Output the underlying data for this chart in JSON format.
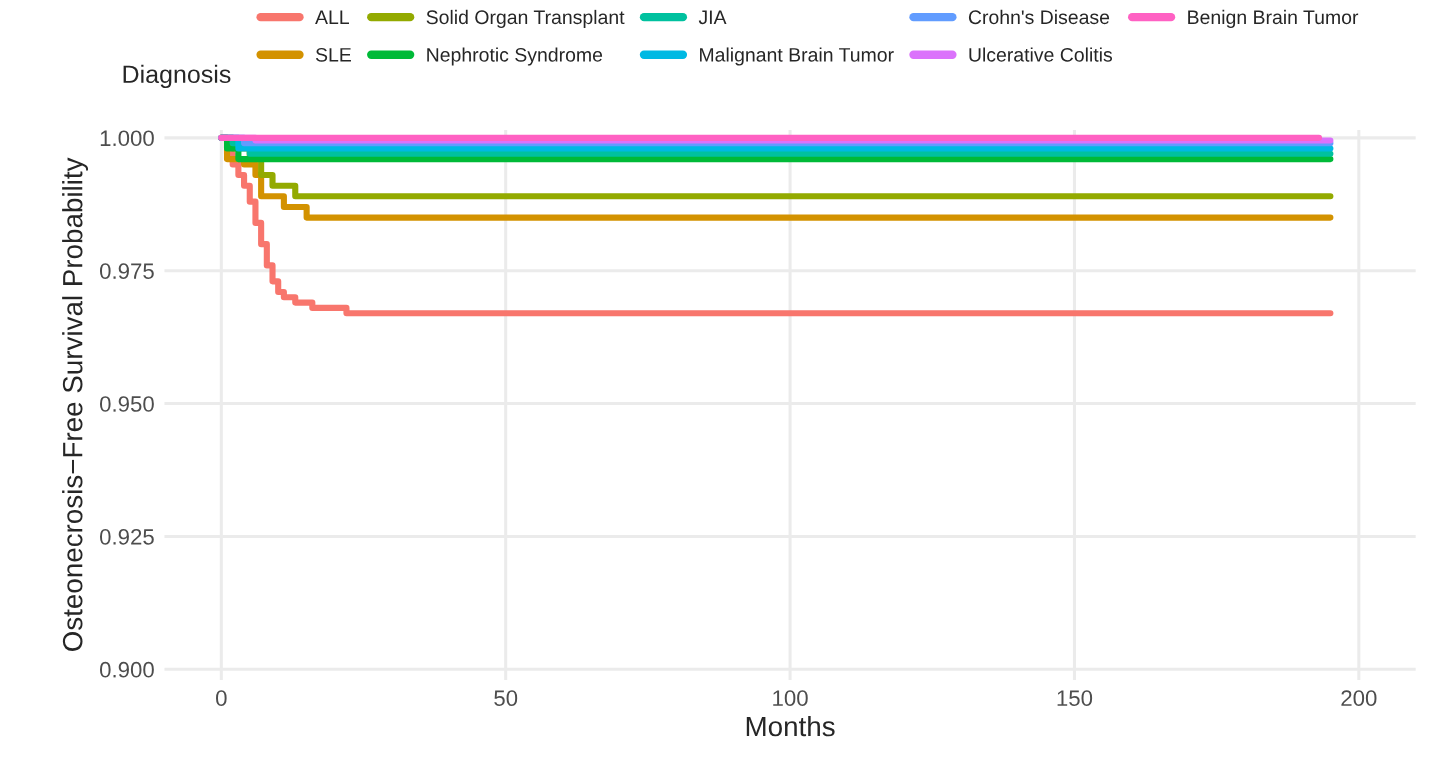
{
  "chart_data": {
    "type": "step",
    "xlabel": "Months",
    "ylabel": "Osteonecrosis−Free Survival Probability",
    "legend_title": "Diagnosis",
    "legend": "top",
    "grid": true,
    "xlim": [
      -10,
      210
    ],
    "ylim": [
      0.898,
      1.0015
    ],
    "xticks": [
      0,
      50,
      100,
      150,
      200
    ],
    "yticks": [
      {
        "value": 0.9,
        "label": "0.900"
      },
      {
        "value": 0.925,
        "label": "0.925"
      },
      {
        "value": 0.95,
        "label": "0.950"
      },
      {
        "value": 0.975,
        "label": "0.975"
      },
      {
        "value": 1.0,
        "label": "1.000"
      }
    ],
    "series": [
      {
        "name": "ALL",
        "color": "#F8766D",
        "x": [
          0,
          1,
          2,
          3,
          4,
          5,
          6,
          7,
          8,
          9,
          10,
          11,
          13,
          16,
          22,
          195
        ],
        "values": [
          1.0,
          0.997,
          0.995,
          0.993,
          0.991,
          0.988,
          0.984,
          0.98,
          0.976,
          0.973,
          0.971,
          0.97,
          0.969,
          0.968,
          0.967,
          0.967
        ]
      },
      {
        "name": "SLE",
        "color": "#D39200",
        "x": [
          0,
          1,
          4,
          6,
          7,
          11,
          15,
          195
        ],
        "values": [
          1.0,
          0.996,
          0.995,
          0.993,
          0.989,
          0.987,
          0.985,
          0.985
        ]
      },
      {
        "name": "Solid Organ Transplant",
        "color": "#93AA00",
        "x": [
          0,
          2,
          5,
          7,
          9,
          13,
          195
        ],
        "values": [
          1.0,
          0.998,
          0.996,
          0.993,
          0.991,
          0.989,
          0.989
        ]
      },
      {
        "name": "Nephrotic Syndrome",
        "color": "#00BA38",
        "x": [
          0,
          1,
          3,
          195
        ],
        "values": [
          1.0,
          0.998,
          0.996,
          0.996
        ]
      },
      {
        "name": "JIA",
        "color": "#00C19F",
        "x": [
          0,
          2,
          5,
          195
        ],
        "values": [
          1.0,
          0.999,
          0.997,
          0.997
        ]
      },
      {
        "name": "Malignant Brain Tumor",
        "color": "#00B9E3",
        "x": [
          0,
          3,
          195
        ],
        "values": [
          1.0,
          0.998,
          0.998
        ]
      },
      {
        "name": "Crohn's Disease",
        "color": "#619CFF",
        "x": [
          0,
          4,
          195
        ],
        "values": [
          1.0,
          0.999,
          0.999
        ]
      },
      {
        "name": "Ulcerative Colitis",
        "color": "#DB72FB",
        "x": [
          0,
          6,
          195
        ],
        "values": [
          1.0,
          0.9995,
          0.9995
        ]
      },
      {
        "name": "Benign Brain Tumor",
        "color": "#FF61C3",
        "x": [
          0,
          193
        ],
        "values": [
          1.0,
          1.0
        ]
      }
    ]
  }
}
